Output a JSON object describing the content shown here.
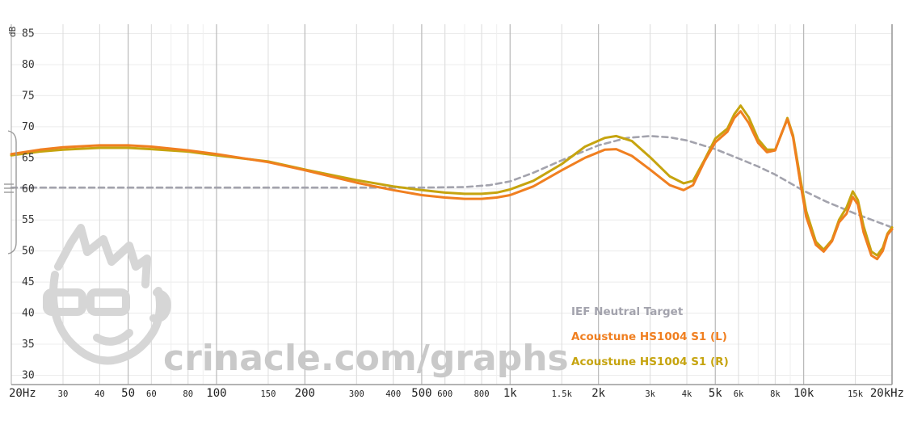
{
  "chart_data": {
    "type": "line",
    "xscale": "log",
    "xlim": [
      20,
      20000
    ],
    "ylim": [
      28.5,
      86.5
    ],
    "ylabel": "dB",
    "grid": true,
    "legend_position": "bottom-right",
    "watermark": "crinacle.com/graphs",
    "y_ticks": [
      30,
      35,
      40,
      45,
      50,
      55,
      60,
      65,
      70,
      75,
      80,
      85
    ],
    "x_ticks": [
      {
        "f": 20,
        "label": "20Hz",
        "major": true
      },
      {
        "f": 30,
        "label": "30",
        "major": false
      },
      {
        "f": 40,
        "label": "40",
        "major": false
      },
      {
        "f": 50,
        "label": "50",
        "major": true
      },
      {
        "f": 60,
        "label": "60",
        "major": false
      },
      {
        "f": 80,
        "label": "80",
        "major": false
      },
      {
        "f": 100,
        "label": "100",
        "major": true
      },
      {
        "f": 150,
        "label": "150",
        "major": false
      },
      {
        "f": 200,
        "label": "200",
        "major": true
      },
      {
        "f": 300,
        "label": "300",
        "major": false
      },
      {
        "f": 400,
        "label": "400",
        "major": false
      },
      {
        "f": 500,
        "label": "500",
        "major": true
      },
      {
        "f": 600,
        "label": "600",
        "major": false
      },
      {
        "f": 800,
        "label": "800",
        "major": false
      },
      {
        "f": 1000,
        "label": "1k",
        "major": true
      },
      {
        "f": 1500,
        "label": "1.5k",
        "major": false
      },
      {
        "f": 2000,
        "label": "2k",
        "major": true
      },
      {
        "f": 3000,
        "label": "3k",
        "major": false
      },
      {
        "f": 4000,
        "label": "4k",
        "major": false
      },
      {
        "f": 5000,
        "label": "5k",
        "major": true
      },
      {
        "f": 6000,
        "label": "6k",
        "major": false
      },
      {
        "f": 8000,
        "label": "8k",
        "major": false
      },
      {
        "f": 10000,
        "label": "10k",
        "major": true
      },
      {
        "f": 15000,
        "label": "15k",
        "major": false
      },
      {
        "f": 20000,
        "label": "20kHz",
        "major": true
      }
    ],
    "series": [
      {
        "name": "IEF Neutral Target",
        "color": "#a3a3ad",
        "dash": true,
        "points": [
          [
            20,
            60.2
          ],
          [
            100,
            60.2
          ],
          [
            300,
            60.2
          ],
          [
            500,
            60.2
          ],
          [
            700,
            60.3
          ],
          [
            850,
            60.6
          ],
          [
            1000,
            61.2
          ],
          [
            1200,
            62.6
          ],
          [
            1500,
            64.6
          ],
          [
            2000,
            67.0
          ],
          [
            2500,
            68.2
          ],
          [
            3000,
            68.5
          ],
          [
            3500,
            68.3
          ],
          [
            4000,
            67.8
          ],
          [
            5000,
            66.4
          ],
          [
            6000,
            64.9
          ],
          [
            7000,
            63.6
          ],
          [
            8000,
            62.3
          ],
          [
            10000,
            59.7
          ],
          [
            12000,
            57.9
          ],
          [
            15000,
            56.0
          ],
          [
            18000,
            54.6
          ],
          [
            20000,
            53.8
          ]
        ]
      },
      {
        "name": "Acoustune HS1004 S1 (L)",
        "color": "#f07f20",
        "dash": false,
        "points": [
          [
            20,
            65.6
          ],
          [
            25,
            66.3
          ],
          [
            30,
            66.7
          ],
          [
            40,
            67.0
          ],
          [
            50,
            67.0
          ],
          [
            60,
            66.8
          ],
          [
            80,
            66.2
          ],
          [
            100,
            65.6
          ],
          [
            150,
            64.3
          ],
          [
            200,
            63.0
          ],
          [
            300,
            61.0
          ],
          [
            400,
            59.8
          ],
          [
            500,
            59.0
          ],
          [
            600,
            58.6
          ],
          [
            700,
            58.4
          ],
          [
            800,
            58.4
          ],
          [
            900,
            58.6
          ],
          [
            1000,
            59.0
          ],
          [
            1200,
            60.4
          ],
          [
            1500,
            63.0
          ],
          [
            1800,
            65.0
          ],
          [
            2100,
            66.3
          ],
          [
            2300,
            66.4
          ],
          [
            2600,
            65.3
          ],
          [
            3000,
            63.1
          ],
          [
            3500,
            60.6
          ],
          [
            3900,
            59.8
          ],
          [
            4200,
            60.6
          ],
          [
            4600,
            64.5
          ],
          [
            5000,
            67.5
          ],
          [
            5500,
            69.2
          ],
          [
            5800,
            71.4
          ],
          [
            6100,
            72.5
          ],
          [
            6500,
            70.6
          ],
          [
            7000,
            67.4
          ],
          [
            7500,
            65.9
          ],
          [
            8000,
            66.2
          ],
          [
            8400,
            68.9
          ],
          [
            8800,
            71.2
          ],
          [
            9200,
            68.3
          ],
          [
            9700,
            61.5
          ],
          [
            10200,
            55.5
          ],
          [
            11000,
            51.0
          ],
          [
            11700,
            49.9
          ],
          [
            12500,
            51.6
          ],
          [
            13200,
            54.6
          ],
          [
            14000,
            56.0
          ],
          [
            14700,
            58.7
          ],
          [
            15300,
            57.5
          ],
          [
            16000,
            53.0
          ],
          [
            17000,
            49.3
          ],
          [
            17800,
            48.7
          ],
          [
            18600,
            50.0
          ],
          [
            19300,
            52.6
          ],
          [
            20000,
            53.5
          ]
        ]
      },
      {
        "name": "Acoustune HS1004 S1 (R)",
        "color": "#c6a40f",
        "dash": false,
        "points": [
          [
            20,
            65.4
          ],
          [
            25,
            66.0
          ],
          [
            30,
            66.3
          ],
          [
            40,
            66.6
          ],
          [
            50,
            66.6
          ],
          [
            60,
            66.4
          ],
          [
            80,
            66.0
          ],
          [
            100,
            65.4
          ],
          [
            150,
            64.4
          ],
          [
            200,
            63.1
          ],
          [
            300,
            61.4
          ],
          [
            400,
            60.4
          ],
          [
            500,
            59.8
          ],
          [
            600,
            59.4
          ],
          [
            700,
            59.2
          ],
          [
            800,
            59.2
          ],
          [
            900,
            59.4
          ],
          [
            1000,
            59.9
          ],
          [
            1200,
            61.3
          ],
          [
            1500,
            64.0
          ],
          [
            1800,
            66.8
          ],
          [
            2100,
            68.2
          ],
          [
            2300,
            68.5
          ],
          [
            2600,
            67.7
          ],
          [
            3000,
            65.1
          ],
          [
            3500,
            62.0
          ],
          [
            3900,
            60.9
          ],
          [
            4200,
            61.3
          ],
          [
            4600,
            64.7
          ],
          [
            5000,
            68.1
          ],
          [
            5500,
            69.7
          ],
          [
            5800,
            72.0
          ],
          [
            6100,
            73.4
          ],
          [
            6500,
            71.5
          ],
          [
            7000,
            68.0
          ],
          [
            7500,
            66.3
          ],
          [
            8000,
            66.3
          ],
          [
            8400,
            68.8
          ],
          [
            8800,
            71.4
          ],
          [
            9200,
            68.6
          ],
          [
            9700,
            62.2
          ],
          [
            10200,
            56.4
          ],
          [
            11000,
            51.5
          ],
          [
            11700,
            50.2
          ],
          [
            12500,
            51.8
          ],
          [
            13200,
            55.0
          ],
          [
            14000,
            57.0
          ],
          [
            14700,
            59.6
          ],
          [
            15300,
            58.2
          ],
          [
            16000,
            54.0
          ],
          [
            17000,
            49.9
          ],
          [
            17800,
            49.3
          ],
          [
            18600,
            50.5
          ],
          [
            19300,
            52.8
          ],
          [
            20000,
            53.8
          ]
        ]
      }
    ]
  }
}
